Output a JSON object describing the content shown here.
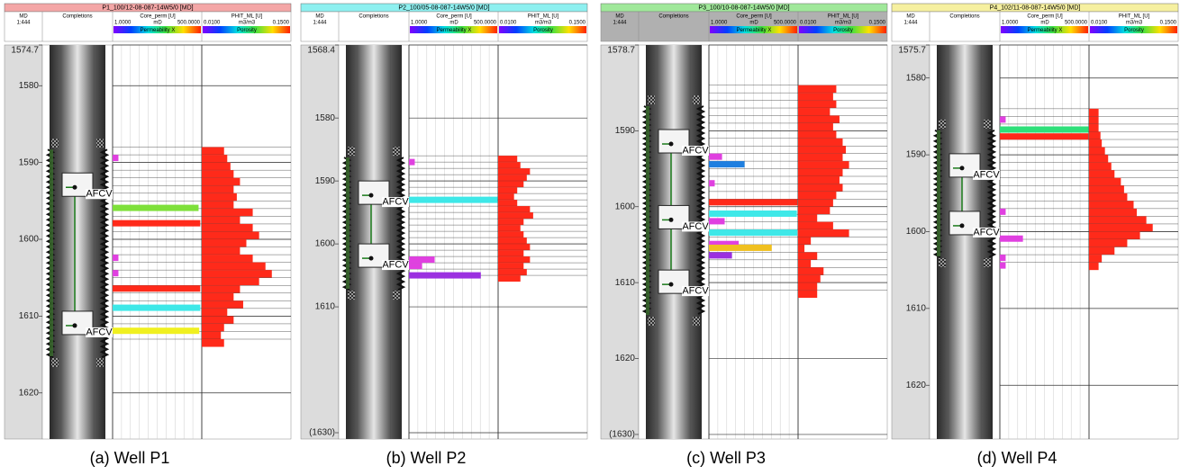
{
  "panels": [
    {
      "title": "P1_100/12-08-087-14W5/0 [MD]",
      "color": "#f4a6a6",
      "caption": "(a) Well P1",
      "header": {
        "md": "MD",
        "scale": "1:444",
        "completions": "Completions",
        "perm_name": "Core_perm [U]",
        "perm_unit": "mD",
        "perm_legend": "Permeability X",
        "poro_name": "PHIT_ML [U]",
        "poro_unit": "m3/m3",
        "poro_legend": "Porosity",
        "perm_range": [
          {
            "value": 1,
            "label": "1.0000"
          },
          {
            "value": 500,
            "label": "500.0000"
          }
        ],
        "poro_range": [
          {
            "value": 0.01,
            "label": "0.0100"
          },
          {
            "value": 0.15,
            "label": "0.1500"
          }
        ]
      },
      "ylim": [
        1574.7,
        1626
      ],
      "yticks": [
        1574.7,
        1580,
        1590,
        1600,
        1610,
        1620
      ],
      "porosity": {
        "color": "#ff2a1a",
        "depths": [
          1588,
          1589,
          1590,
          1591,
          1592,
          1593,
          1594,
          1595,
          1596,
          1597,
          1598,
          1599,
          1600,
          1601,
          1602,
          1603,
          1604,
          1605,
          1606,
          1607,
          1608,
          1609,
          1610,
          1611,
          1612,
          1613
        ],
        "values": [
          0.045,
          0.05,
          0.055,
          0.06,
          0.07,
          0.06,
          0.065,
          0.06,
          0.09,
          0.07,
          0.09,
          0.1,
          0.08,
          0.07,
          0.09,
          0.11,
          0.12,
          0.1,
          0.07,
          0.06,
          0.075,
          0.05,
          0.06,
          0.045,
          0.04,
          0.045
        ]
      },
      "permeability": {
        "depths": [
          1589,
          1595.5,
          1597.5,
          1602,
          1604,
          1606,
          1608.5,
          1611.5
        ],
        "values": [
          1.5,
          400,
          450,
          1.5,
          1.5,
          450,
          450,
          420
        ],
        "colors": [
          "#e040e0",
          "#7ee03a",
          "#ff2a1a",
          "#e040e0",
          "#e040e0",
          "#ff2a1a",
          "#3ee8e8",
          "#f0f020"
        ]
      },
      "valves": [
        {
          "label": "AFCV",
          "depth": 1593
        },
        {
          "label": "AFCV",
          "depth": 1611
        }
      ]
    },
    {
      "title": "P2_100/05-08-087-14W5/0 [MD]",
      "color": "#8ef0f0",
      "caption": "(b) Well P2",
      "header": {
        "md": "MD",
        "scale": "1:444",
        "completions": "Completions",
        "perm_name": "Core_perm [U]",
        "perm_unit": "mD",
        "perm_legend": "Permeability X",
        "poro_name": "PHIT_ML [U]",
        "poro_unit": "m3/m3",
        "poro_legend": "Porosity",
        "perm_range": [
          {
            "value": 1,
            "label": "1.0000"
          },
          {
            "value": 500,
            "label": "500.0000"
          }
        ],
        "poro_range": [
          {
            "value": 0.01,
            "label": "0.0100"
          },
          {
            "value": 0.15,
            "label": "0.1500"
          }
        ]
      },
      "ylim": [
        1568.4,
        1631
      ],
      "yticks": [
        1568.4,
        1580,
        1590,
        1600,
        1610,
        {
          "value": 1630,
          "label": "(1630)"
        }
      ],
      "porosity": {
        "color": "#ff2a1a",
        "depths": [
          1586,
          1587,
          1588,
          1589,
          1590,
          1591,
          1592,
          1593,
          1594,
          1595,
          1596,
          1597,
          1598,
          1599,
          1600,
          1601,
          1602,
          1603,
          1604,
          1605
        ],
        "values": [
          0.04,
          0.045,
          0.06,
          0.055,
          0.05,
          0.04,
          0.035,
          0.04,
          0.06,
          0.065,
          0.05,
          0.045,
          0.05,
          0.055,
          0.06,
          0.05,
          0.06,
          0.05,
          0.055,
          0.045
        ]
      },
      "permeability": {
        "depths": [
          1586.5,
          1592.5,
          1602,
          1603,
          1604.5
        ],
        "values": [
          1.5,
          480,
          6,
          2.5,
          150
        ],
        "colors": [
          "#e040e0",
          "#3ee8e8",
          "#e040e0",
          "#e040e0",
          "#9b2fe0"
        ]
      },
      "valves": [
        {
          "label": "AFCV",
          "depth": 1592
        },
        {
          "label": "AFCV",
          "depth": 1602
        }
      ]
    },
    {
      "title": "P3_100/10-08-087-14W5/0 [MD]",
      "color": "#a0e89a",
      "caption": "(c) Well P3",
      "header": {
        "md": "MD",
        "scale": "1:444",
        "completions": "Completions",
        "perm_name": "Core_perm [U]",
        "perm_unit": "mD",
        "perm_legend": "Permeability X",
        "poro_name": "PHIT_ML [U]",
        "poro_unit": "m3/m3",
        "poro_legend": "Porosity",
        "perm_range": [
          {
            "value": 1,
            "label": "1.0000"
          },
          {
            "value": 500,
            "label": "500.0000"
          }
        ],
        "poro_range": [
          {
            "value": 0.01,
            "label": "0.0100"
          },
          {
            "value": 0.15,
            "label": "0.1500"
          }
        ]
      },
      "ylim": [
        1578.7,
        1630.6
      ],
      "yticks": [
        1578.7,
        1590,
        1600,
        1610,
        1620,
        {
          "value": 1630,
          "label": "(1630)"
        }
      ],
      "porosity": {
        "color": "#ff2a1a",
        "depths": [
          1584,
          1585,
          1586,
          1587,
          1588,
          1589,
          1590,
          1591,
          1592,
          1593,
          1594,
          1595,
          1596,
          1597,
          1598,
          1599,
          1600,
          1601,
          1602,
          1603,
          1604,
          1605,
          1606,
          1607,
          1608,
          1609,
          1610,
          1611
        ],
        "values": [
          0.07,
          0.065,
          0.07,
          0.06,
          0.075,
          0.065,
          0.07,
          0.08,
          0.085,
          0.08,
          0.09,
          0.08,
          0.075,
          0.08,
          0.07,
          0.065,
          0.06,
          0.04,
          0.065,
          0.09,
          0.03,
          0.02,
          0.04,
          0.03,
          0.05,
          0.045,
          0.04,
          0.04
        ]
      },
      "permeability": {
        "depths": [
          1593,
          1594,
          1596.5,
          1599,
          1600.5,
          1601.5,
          1603,
          1604.5,
          1605,
          1606
        ],
        "values": [
          2.5,
          12,
          1.5,
          480,
          460,
          3,
          470,
          8,
          80,
          5
        ],
        "colors": [
          "#e040e0",
          "#1f7fe0",
          "#e040e0",
          "#ff2a1a",
          "#3ee8e8",
          "#e040e0",
          "#3ee8e8",
          "#e040e0",
          "#f0c020",
          "#9b2fe0"
        ]
      },
      "valves": [
        {
          "label": "AFCV",
          "depth": 1591.5
        },
        {
          "label": "AFCV",
          "depth": 1601.5
        },
        {
          "label": "AFCV",
          "depth": 1610
        }
      ]
    },
    {
      "title": "P4_102/11-08-087-14W5/0 [MD]",
      "color": "#f6f0a0",
      "caption": "(d) Well P4",
      "header": {
        "md": "MD",
        "scale": "1:444",
        "completions": "Completions",
        "perm_name": "Core_perm [U]",
        "perm_unit": "mD",
        "perm_legend": "Permeability X",
        "poro_name": "PHIT_ML [U]",
        "poro_unit": "m3/m3",
        "poro_legend": "Porosity",
        "perm_range": [
          {
            "value": 1,
            "label": "1.0000"
          },
          {
            "value": 500,
            "label": "500.0000"
          }
        ],
        "poro_range": [
          {
            "value": 0.01,
            "label": "0.0100"
          },
          {
            "value": 0.15,
            "label": "0.1500"
          }
        ]
      },
      "ylim": [
        1575.7,
        1627
      ],
      "yticks": [
        1575.7,
        1580,
        1590,
        1600,
        1610,
        1620
      ],
      "porosity": {
        "color": "#ff2a1a",
        "depths": [
          1584,
          1585,
          1586,
          1587,
          1588,
          1589,
          1590,
          1591,
          1592,
          1593,
          1594,
          1595,
          1596,
          1597,
          1598,
          1599,
          1600,
          1601,
          1602,
          1603,
          1604
        ],
        "values": [
          0.025,
          0.025,
          0.025,
          0.028,
          0.03,
          0.035,
          0.04,
          0.045,
          0.05,
          0.06,
          0.065,
          0.07,
          0.08,
          0.085,
          0.1,
          0.11,
          0.09,
          0.07,
          0.05,
          0.03,
          0.025
        ]
      },
      "permeability": {
        "depths": [
          1585,
          1586.3,
          1587.2,
          1597,
          1600.5,
          1603,
          1604
        ],
        "values": [
          1.5,
          480,
          480,
          1.5,
          5,
          1.5,
          1.5
        ],
        "colors": [
          "#e040e0",
          "#2fe07a",
          "#ff2a1a",
          "#e040e0",
          "#e040e0",
          "#e040e0",
          "#e040e0"
        ]
      },
      "valves": [
        {
          "label": "AFCV",
          "depth": 1591.5
        },
        {
          "label": "AFCV",
          "depth": 1599
        }
      ]
    }
  ]
}
